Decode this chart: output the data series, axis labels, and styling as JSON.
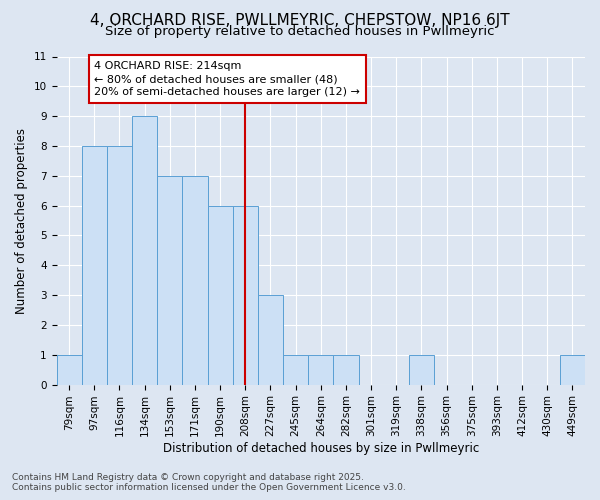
{
  "title": "4, ORCHARD RISE, PWLLMEYRIC, CHEPSTOW, NP16 6JT",
  "subtitle": "Size of property relative to detached houses in Pwllmeyric",
  "xlabel": "Distribution of detached houses by size in Pwllmeyric",
  "ylabel": "Number of detached properties",
  "categories": [
    "79sqm",
    "97sqm",
    "116sqm",
    "134sqm",
    "153sqm",
    "171sqm",
    "190sqm",
    "208sqm",
    "227sqm",
    "245sqm",
    "264sqm",
    "282sqm",
    "301sqm",
    "319sqm",
    "338sqm",
    "356sqm",
    "375sqm",
    "393sqm",
    "412sqm",
    "430sqm",
    "449sqm"
  ],
  "values": [
    1,
    8,
    8,
    9,
    7,
    7,
    6,
    6,
    3,
    1,
    1,
    1,
    0,
    0,
    1,
    0,
    0,
    0,
    0,
    0,
    1
  ],
  "bar_color": "#cce0f5",
  "bar_edge_color": "#5a9fd4",
  "background_color": "#dde6f2",
  "grid_color": "#ffffff",
  "ref_line_x": 7,
  "ref_line_color": "#cc0000",
  "annotation_text": "4 ORCHARD RISE: 214sqm\n← 80% of detached houses are smaller (48)\n20% of semi-detached houses are larger (12) →",
  "annotation_box_facecolor": "#ffffff",
  "annotation_box_edgecolor": "#cc0000",
  "ylim_max": 11,
  "yticks": [
    0,
    1,
    2,
    3,
    4,
    5,
    6,
    7,
    8,
    9,
    10,
    11
  ],
  "footer": "Contains HM Land Registry data © Crown copyright and database right 2025.\nContains public sector information licensed under the Open Government Licence v3.0.",
  "title_fontsize": 11,
  "subtitle_fontsize": 9.5,
  "tick_fontsize": 7.5,
  "ylabel_fontsize": 8.5,
  "xlabel_fontsize": 8.5,
  "annotation_fontsize": 8,
  "footer_fontsize": 6.5
}
